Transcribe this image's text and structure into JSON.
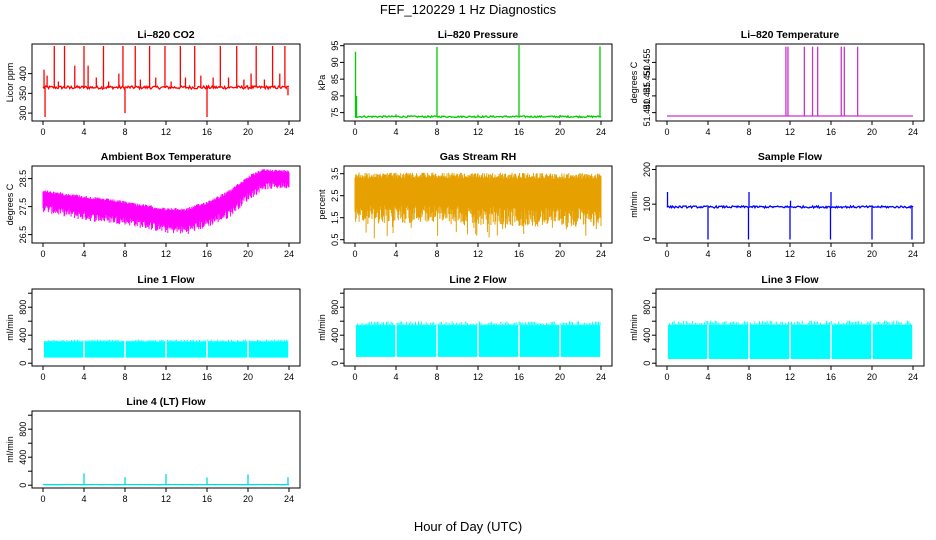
{
  "figure": {
    "title": "FEF_120229  1 Hz Diagnostics",
    "xlabel": "Hour of Day (UTC)"
  },
  "chart_data": [
    {
      "type": "line",
      "title": "Li–820 CO2",
      "xlabel": "",
      "ylabel": "Licor ppm",
      "xlim": [
        0,
        24
      ],
      "ylim": [
        280,
        475
      ],
      "x_ticks": [
        0,
        4,
        8,
        12,
        16,
        20,
        24
      ],
      "x_tick_labels": [
        "0",
        "4",
        "8",
        "12",
        "16",
        "20",
        "24"
      ],
      "y_ticks": [
        300,
        350,
        400
      ],
      "y_tick_labels": [
        "300",
        "350",
        "400"
      ],
      "color": "#ff0000",
      "pattern": "baseline_spikes",
      "series": [
        {
          "baseline": 365,
          "noise": 4,
          "spikes": [
            {
              "x": 0.1,
              "y": 410
            },
            {
              "x": 0.2,
              "y": 290
            },
            {
              "x": 0.4,
              "y": 395
            },
            {
              "x": 1.1,
              "y": 470
            },
            {
              "x": 1.5,
              "y": 380
            },
            {
              "x": 2.1,
              "y": 470
            },
            {
              "x": 2.6,
              "y": 360
            },
            {
              "x": 3.1,
              "y": 420
            },
            {
              "x": 4.0,
              "y": 470
            },
            {
              "x": 4.4,
              "y": 420
            },
            {
              "x": 5.2,
              "y": 390
            },
            {
              "x": 5.9,
              "y": 470
            },
            {
              "x": 6.4,
              "y": 380
            },
            {
              "x": 7.4,
              "y": 400
            },
            {
              "x": 7.8,
              "y": 470
            },
            {
              "x": 8.0,
              "y": 300
            },
            {
              "x": 8.3,
              "y": 370
            },
            {
              "x": 9.0,
              "y": 470
            },
            {
              "x": 9.5,
              "y": 385
            },
            {
              "x": 10.4,
              "y": 470
            },
            {
              "x": 11.0,
              "y": 390
            },
            {
              "x": 11.9,
              "y": 470
            },
            {
              "x": 12.5,
              "y": 380
            },
            {
              "x": 13.4,
              "y": 470
            },
            {
              "x": 13.9,
              "y": 390
            },
            {
              "x": 14.8,
              "y": 470
            },
            {
              "x": 15.4,
              "y": 395
            },
            {
              "x": 16.0,
              "y": 290
            },
            {
              "x": 16.6,
              "y": 390
            },
            {
              "x": 17.3,
              "y": 470
            },
            {
              "x": 18.1,
              "y": 390
            },
            {
              "x": 18.9,
              "y": 470
            },
            {
              "x": 19.6,
              "y": 385
            },
            {
              "x": 20.3,
              "y": 400
            },
            {
              "x": 20.8,
              "y": 470
            },
            {
              "x": 21.6,
              "y": 385
            },
            {
              "x": 22.4,
              "y": 470
            },
            {
              "x": 23.1,
              "y": 400
            },
            {
              "x": 23.6,
              "y": 470
            },
            {
              "x": 23.9,
              "y": 345
            }
          ]
        }
      ]
    },
    {
      "type": "line",
      "title": "Li–820 Pressure",
      "xlabel": "",
      "ylabel": "kPa",
      "xlim": [
        0,
        24
      ],
      "ylim": [
        72.5,
        95.5
      ],
      "x_ticks": [
        0,
        4,
        8,
        12,
        16,
        20,
        24
      ],
      "x_tick_labels": [
        "0",
        "4",
        "8",
        "12",
        "16",
        "20",
        "24"
      ],
      "y_ticks": [
        75,
        80,
        85,
        90,
        95
      ],
      "y_tick_labels": [
        "75",
        "80",
        "85",
        "90",
        "95"
      ],
      "color": "#00cc00",
      "pattern": "baseline_spikes",
      "series": [
        {
          "baseline": 73.8,
          "noise": 0.25,
          "spikes": [
            {
              "x": 0.05,
              "y": 93.2
            },
            {
              "x": 0.15,
              "y": 80
            },
            {
              "x": 4.0,
              "y": 74.5
            },
            {
              "x": 8.0,
              "y": 94.6
            },
            {
              "x": 12.0,
              "y": 74.4
            },
            {
              "x": 16.0,
              "y": 95.2
            },
            {
              "x": 20.0,
              "y": 74.3
            },
            {
              "x": 23.9,
              "y": 94.8
            }
          ]
        }
      ]
    },
    {
      "type": "line",
      "title": "Li–820 Temperature",
      "xlabel": "",
      "ylabel": "degrees C",
      "xlim": [
        0,
        24
      ],
      "ylim": [
        51.4375,
        51.4605
      ],
      "x_ticks": [
        0,
        4,
        8,
        12,
        16,
        20,
        24
      ],
      "x_tick_labels": [
        "0",
        "4",
        "8",
        "12",
        "16",
        "20",
        "24"
      ],
      "y_ticks": [
        51.44,
        51.445,
        51.45,
        51.455
      ],
      "y_tick_labels": [
        "51.440",
        "51.445",
        "51.450",
        "51.455"
      ],
      "color": "#cc33cc",
      "pattern": "step_spikes",
      "series": [
        {
          "baseline": 51.439,
          "spikes": [
            {
              "x": 11.6,
              "y": 51.4597
            },
            {
              "x": 11.8,
              "y": 51.4597
            },
            {
              "x": 13.4,
              "y": 51.4597
            },
            {
              "x": 14.2,
              "y": 51.4597
            },
            {
              "x": 14.7,
              "y": 51.4597
            },
            {
              "x": 17.0,
              "y": 51.4597
            },
            {
              "x": 17.3,
              "y": 51.4597
            },
            {
              "x": 18.6,
              "y": 51.4597
            }
          ]
        }
      ]
    },
    {
      "type": "line",
      "title": "Ambient Box Temperature",
      "xlabel": "",
      "ylabel": "degrees C",
      "xlim": [
        0,
        24
      ],
      "ylim": [
        26.2,
        28.95
      ],
      "x_ticks": [
        0,
        4,
        8,
        12,
        16,
        20,
        24
      ],
      "x_tick_labels": [
        "0",
        "4",
        "8",
        "12",
        "16",
        "20",
        "24"
      ],
      "y_ticks": [
        26.5,
        27.5,
        28.5
      ],
      "y_tick_labels": [
        "26.5",
        "27.5",
        "28.5"
      ],
      "color": "#ff00ff",
      "pattern": "band",
      "series": [
        {
          "upper": [
            {
              "x": 0,
              "y": 28.1
            },
            {
              "x": 4,
              "y": 27.9
            },
            {
              "x": 8,
              "y": 27.7
            },
            {
              "x": 12,
              "y": 27.45
            },
            {
              "x": 14,
              "y": 27.45
            },
            {
              "x": 16,
              "y": 27.7
            },
            {
              "x": 18,
              "y": 28.05
            },
            {
              "x": 20,
              "y": 28.6
            },
            {
              "x": 21.5,
              "y": 28.85
            },
            {
              "x": 24,
              "y": 28.8
            }
          ],
          "lower": [
            {
              "x": 0,
              "y": 27.3
            },
            {
              "x": 4,
              "y": 27.0
            },
            {
              "x": 8,
              "y": 26.85
            },
            {
              "x": 12,
              "y": 26.55
            },
            {
              "x": 14,
              "y": 26.5
            },
            {
              "x": 16,
              "y": 26.75
            },
            {
              "x": 18,
              "y": 27.05
            },
            {
              "x": 20,
              "y": 27.7
            },
            {
              "x": 21.5,
              "y": 28.1
            },
            {
              "x": 24,
              "y": 28.15
            }
          ]
        }
      ]
    },
    {
      "type": "line",
      "title": "Gas Stream RH",
      "xlabel": "",
      "ylabel": "percent",
      "xlim": [
        0,
        24
      ],
      "ylim": [
        0.35,
        3.85
      ],
      "x_ticks": [
        0,
        4,
        8,
        12,
        16,
        20,
        24
      ],
      "x_tick_labels": [
        "0",
        "4",
        "8",
        "12",
        "16",
        "20",
        "24"
      ],
      "y_ticks": [
        0.5,
        1.5,
        2.5,
        3.5
      ],
      "y_tick_labels": [
        "0.5",
        "1.5",
        "2.5",
        "3.5"
      ],
      "color": "#e6a000",
      "pattern": "band_drops",
      "series": [
        {
          "upper": [
            {
              "x": 0,
              "y": 3.55
            },
            {
              "x": 24,
              "y": 3.55
            }
          ],
          "lower": [
            {
              "x": 0,
              "y": 1.2
            },
            {
              "x": 8,
              "y": 1.3
            },
            {
              "x": 16,
              "y": 1.1
            },
            {
              "x": 24,
              "y": 1.1
            }
          ],
          "min": 0.55
        }
      ]
    },
    {
      "type": "line",
      "title": "Sample Flow",
      "xlabel": "",
      "ylabel": "ml/min",
      "xlim": [
        0,
        24
      ],
      "ylim": [
        -12,
        210
      ],
      "x_ticks": [
        0,
        4,
        8,
        12,
        16,
        20,
        24
      ],
      "x_tick_labels": [
        "0",
        "4",
        "8",
        "12",
        "16",
        "20",
        "24"
      ],
      "y_ticks": [
        0,
        100,
        200
      ],
      "y_tick_labels": [
        "0",
        "100",
        "200"
      ],
      "color": "#0000ff",
      "pattern": "baseline_spikes",
      "series": [
        {
          "baseline": 92,
          "noise": 3,
          "spikes": [
            {
              "x": 0.05,
              "y": 135
            },
            {
              "x": 4.0,
              "y": -2
            },
            {
              "x": 8.0,
              "y": 135
            },
            {
              "x": 7.95,
              "y": -2
            },
            {
              "x": 12.0,
              "y": -2
            },
            {
              "x": 12.05,
              "y": 110
            },
            {
              "x": 16.0,
              "y": 135
            },
            {
              "x": 15.95,
              "y": -2
            },
            {
              "x": 20.0,
              "y": -2
            },
            {
              "x": 23.9,
              "y": -2
            }
          ]
        }
      ]
    },
    {
      "type": "area",
      "title": "Line 1 Flow",
      "xlabel": "",
      "ylabel": "ml/min",
      "xlim": [
        0,
        24
      ],
      "ylim": [
        -40,
        1060
      ],
      "x_ticks": [
        0,
        4,
        8,
        12,
        16,
        20,
        24
      ],
      "x_tick_labels": [
        "0",
        "4",
        "8",
        "12",
        "16",
        "20",
        "24"
      ],
      "y_ticks": [
        0,
        200,
        400,
        600,
        800,
        1000
      ],
      "y_tick_labels": [
        "0",
        "400",
        "800"
      ],
      "color": "#00ffff",
      "pattern": "block_band",
      "series": [
        {
          "upper": 310,
          "lower": 80,
          "gaps": [
            4,
            8,
            12,
            16,
            20
          ]
        }
      ]
    },
    {
      "type": "area",
      "title": "Line 2 Flow",
      "xlabel": "",
      "ylabel": "ml/min",
      "xlim": [
        0,
        24
      ],
      "ylim": [
        -40,
        1060
      ],
      "x_ticks": [
        0,
        4,
        8,
        12,
        16,
        20,
        24
      ],
      "x_tick_labels": [
        "0",
        "4",
        "8",
        "12",
        "16",
        "20",
        "24"
      ],
      "y_ticks": [
        0,
        200,
        400,
        600,
        800,
        1000
      ],
      "y_tick_labels": [
        "0",
        "400",
        "800"
      ],
      "color": "#00ffff",
      "pattern": "block_band",
      "series": [
        {
          "upper": 545,
          "lower": 90,
          "gaps": [
            4,
            8,
            12,
            16,
            20
          ]
        }
      ]
    },
    {
      "type": "area",
      "title": "Line 3 Flow",
      "xlabel": "",
      "ylabel": "ml/min",
      "xlim": [
        0,
        24
      ],
      "ylim": [
        -40,
        1060
      ],
      "x_ticks": [
        0,
        4,
        8,
        12,
        16,
        20,
        24
      ],
      "x_tick_labels": [
        "0",
        "4",
        "8",
        "12",
        "16",
        "20",
        "24"
      ],
      "y_ticks": [
        0,
        200,
        400,
        600,
        800,
        1000
      ],
      "y_tick_labels": [
        "0",
        "400",
        "800"
      ],
      "color": "#00ffff",
      "pattern": "block_band",
      "series": [
        {
          "upper": 550,
          "lower": 60,
          "gaps": [
            4,
            8,
            12,
            16,
            20
          ]
        }
      ]
    },
    {
      "type": "line",
      "title": "Line 4 (LT) Flow",
      "xlabel": "",
      "ylabel": "ml/min",
      "xlim": [
        0,
        24
      ],
      "ylim": [
        -40,
        1060
      ],
      "x_ticks": [
        0,
        4,
        8,
        12,
        16,
        20,
        24
      ],
      "x_tick_labels": [
        "0",
        "4",
        "8",
        "12",
        "16",
        "20",
        "24"
      ],
      "y_ticks": [
        0,
        200,
        400,
        600,
        800,
        1000
      ],
      "y_tick_labels": [
        "0",
        "400",
        "800"
      ],
      "color": "#00dddd",
      "pattern": "baseline_spikes",
      "series": [
        {
          "baseline": 8,
          "noise": 2,
          "spikes": [
            {
              "x": 4.0,
              "y": 170
            },
            {
              "x": 8.0,
              "y": 115
            },
            {
              "x": 12.0,
              "y": 160
            },
            {
              "x": 16.0,
              "y": 110
            },
            {
              "x": 20.0,
              "y": 155
            },
            {
              "x": 23.9,
              "y": 115
            }
          ]
        }
      ]
    }
  ]
}
